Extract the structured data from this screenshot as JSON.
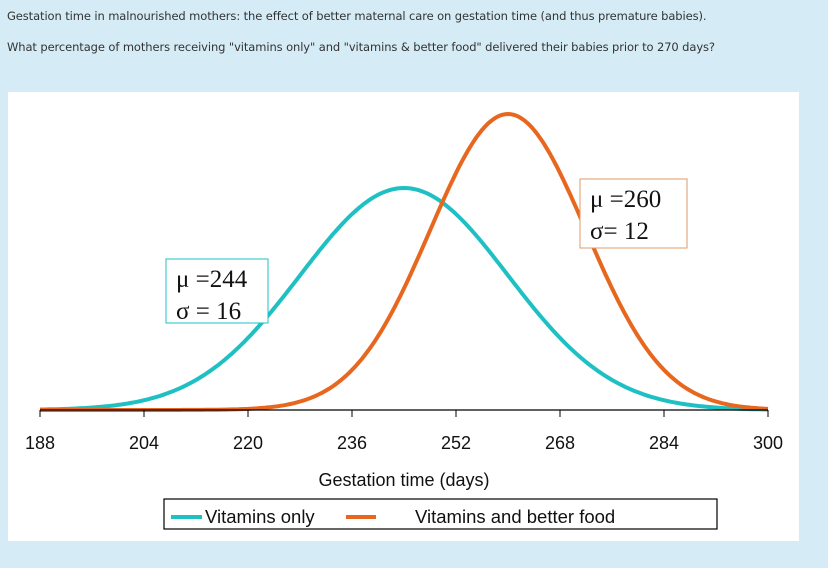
{
  "question": {
    "line1": "Gestation time in malnourished mothers: the effect of better maternal care on gestation time (and thus premature babies).",
    "line2": "What percentage of mothers receiving \"vitamins only\" and \"vitamins & better food\" delivered their babies prior to 270 days?"
  },
  "colors": {
    "page_background": "#d5ecf6",
    "vitamins_only": "#1fc0c4",
    "vitamins_better_food": "#e8671f"
  },
  "chart_data": {
    "type": "line",
    "title": "",
    "xlabel": "Gestation time (days)",
    "ylabel": "",
    "xlim": [
      188,
      300
    ],
    "xticks": [
      188,
      204,
      220,
      236,
      252,
      268,
      284,
      300
    ],
    "xtick_labels": [
      "188",
      "204",
      "220",
      "236",
      "252",
      "268",
      "284",
      "300"
    ],
    "grid": false,
    "legend_position": "bottom",
    "series": [
      {
        "name": "Vitamins only",
        "distribution": "normal",
        "mean": 244,
        "sd": 16,
        "color": "#1fc0c4",
        "annotation": [
          "μ =244",
          "σ = 16"
        ]
      },
      {
        "name": "Vitamins and better food",
        "distribution": "normal",
        "mean": 260,
        "sd": 12,
        "color": "#e8671f",
        "annotation": [
          "μ =260",
          "σ= 12"
        ]
      }
    ]
  }
}
